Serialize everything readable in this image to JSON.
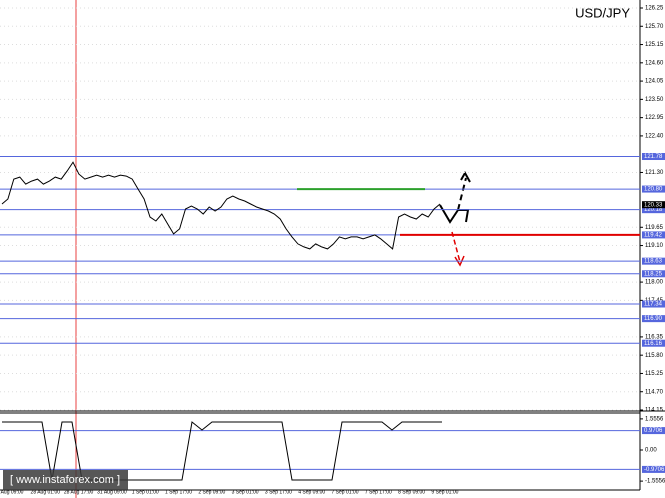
{
  "title": "USD/JPY",
  "watermark": "[  www.instaforex.com  ]",
  "chart_data": [
    {
      "type": "line",
      "color": "#000000",
      "values": [
        120.35,
        120.5,
        121.1,
        121.16,
        120.95,
        121.04,
        121.1,
        120.95,
        121.04,
        121.16,
        121.1,
        121.34,
        121.61,
        121.25,
        121.1,
        121.16,
        121.22,
        121.16,
        121.22,
        121.16,
        121.22,
        121.19,
        121.1,
        120.8,
        120.5,
        119.96,
        119.84,
        120.05,
        119.75,
        119.45,
        119.6,
        120.2,
        120.29,
        120.2,
        120.05,
        120.26,
        120.14,
        120.26,
        120.5,
        120.59,
        120.5,
        120.44,
        120.35,
        120.26,
        120.2,
        120.14,
        120.05,
        119.9,
        119.6,
        119.36,
        119.15,
        119.06,
        119.0,
        119.15,
        119.06,
        119.0,
        119.15,
        119.36,
        119.3,
        119.36,
        119.36,
        119.3,
        119.36,
        119.42,
        119.3,
        119.15,
        119.0,
        119.96,
        120.05,
        119.96,
        119.9,
        120.05,
        119.96,
        120.2,
        120.35
      ],
      "ylim": [
        114.15,
        126.25
      ],
      "yticks": [
        126.25,
        {
          "value": 125.7,
          "label": "125.70"
        },
        125.15,
        {
          "value": 124.6,
          "label": "124.60"
        },
        124.05,
        {
          "value": 123.5,
          "label": "123.50"
        },
        122.95,
        {
          "value": 122.4,
          "label": "122.40"
        },
        {
          "value": 121.3,
          "label": "121.30"
        },
        119.65,
        {
          "value": 119.1,
          "label": "119.10"
        },
        {
          "value": 118.0,
          "label": "118.00"
        },
        117.45,
        116.35,
        {
          "value": 115.8,
          "label": "115.80"
        },
        115.25,
        {
          "value": 114.7,
          "label": "114.70"
        },
        114.15
      ],
      "grid": true,
      "x_labels": [
        "Aug 09:00",
        "28 Aug 01:00",
        "28 Aug 17:00",
        "31 Aug 09:00",
        "1 Sep 01:00",
        "1 Sep 17:00",
        "2 Sep 09:00",
        "3 Sep 01:00",
        "3 Sep 17:00",
        "4 Sep 09:00",
        "7 Sep 01:00",
        "7 Sep 17:00",
        "8 Sep 09:00",
        "9 Sep 01:00"
      ],
      "level_color": "#5566dd",
      "levels": [
        121.78,
        {
          "value": 120.8,
          "label": "120.80"
        },
        120.18,
        119.42,
        118.63,
        118.25,
        117.34,
        {
          "value": 116.9,
          "label": "116.90"
        },
        116.16
      ],
      "current": 120.33,
      "segments": [
        {
          "value": 120.8,
          "color": "#2ca02c"
        },
        {
          "value": 119.42,
          "color": "#e00000"
        }
      ]
    },
    {
      "type": "line",
      "color": "#000000",
      "values": [
        1.4,
        1.4,
        1.4,
        1.4,
        1.4,
        -1.5,
        1.4,
        1.4,
        -1.5,
        -1.5,
        -1.5,
        -1.5,
        -1.5,
        -1.5,
        -1.5,
        -1.5,
        -1.5,
        -1.5,
        -1.5,
        1.4,
        1.0,
        1.4,
        1.4,
        1.4,
        1.4,
        1.4,
        1.4,
        1.4,
        1.4,
        -1.5,
        -1.5,
        -1.5,
        -1.5,
        -1.5,
        1.4,
        1.4,
        1.4,
        1.4,
        1.4,
        1.0,
        1.4,
        1.4,
        1.4,
        1.4,
        1.4
      ],
      "ylim": [
        -2.0,
        1.85
      ],
      "yticks": [
        1.5556,
        {
          "value": 0,
          "label": "0.00"
        },
        -1.5556
      ],
      "level_color": "#5566dd",
      "levels": [
        0.9706,
        -0.9706
      ]
    }
  ]
}
